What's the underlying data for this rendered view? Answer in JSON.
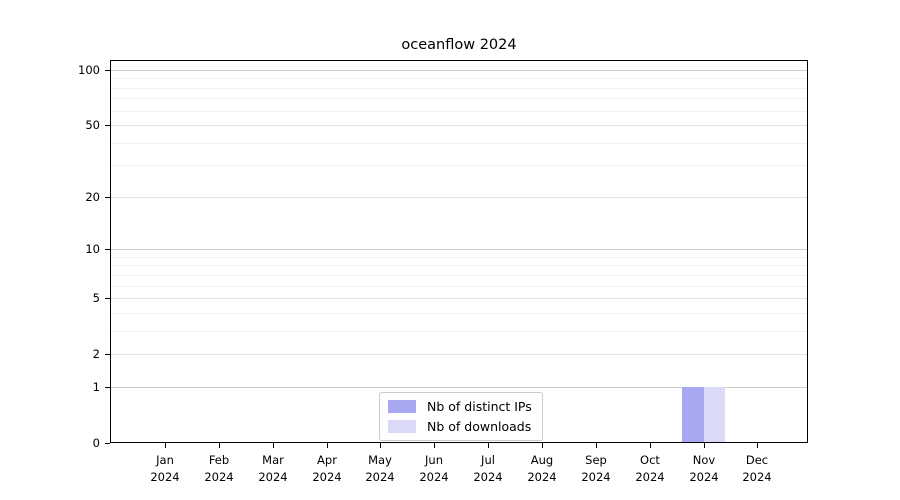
{
  "title": "oceanflow 2024",
  "legend": {
    "items": [
      {
        "label": "Nb of distinct IPs",
        "color": "#a8a8f2"
      },
      {
        "label": "Nb of downloads",
        "color": "#dadaf8"
      }
    ]
  },
  "chart_data": {
    "type": "bar",
    "title": "oceanflow 2024",
    "categories": [
      "Jan 2024",
      "Feb 2024",
      "Mar 2024",
      "Apr 2024",
      "May 2024",
      "Jun 2024",
      "Jul 2024",
      "Aug 2024",
      "Sep 2024",
      "Oct 2024",
      "Nov 2024",
      "Dec 2024"
    ],
    "series": [
      {
        "name": "Nb of distinct IPs",
        "color": "#a8a8f2",
        "values": [
          0,
          0,
          0,
          0,
          0,
          0,
          0,
          0,
          0,
          0,
          1,
          0
        ]
      },
      {
        "name": "Nb of downloads",
        "color": "#dadaf8",
        "values": [
          0,
          0,
          0,
          0,
          0,
          0,
          0,
          0,
          0,
          0,
          1,
          0
        ]
      }
    ],
    "xlabel": "",
    "ylabel": "",
    "yscale": "log1p",
    "yticks": [
      0,
      1,
      2,
      5,
      10,
      20,
      50,
      100
    ],
    "yticks_minor": [
      3,
      4,
      6,
      7,
      8,
      9,
      30,
      40,
      60,
      70,
      80,
      90
    ],
    "ylim": [
      0,
      113
    ],
    "grid": true,
    "legend_position": "lower center",
    "colors": {
      "grid_strong": "#cccccc",
      "grid_mid": "#e2e2e2",
      "grid_minor": "#f0f0f0",
      "axis": "#000000"
    }
  }
}
